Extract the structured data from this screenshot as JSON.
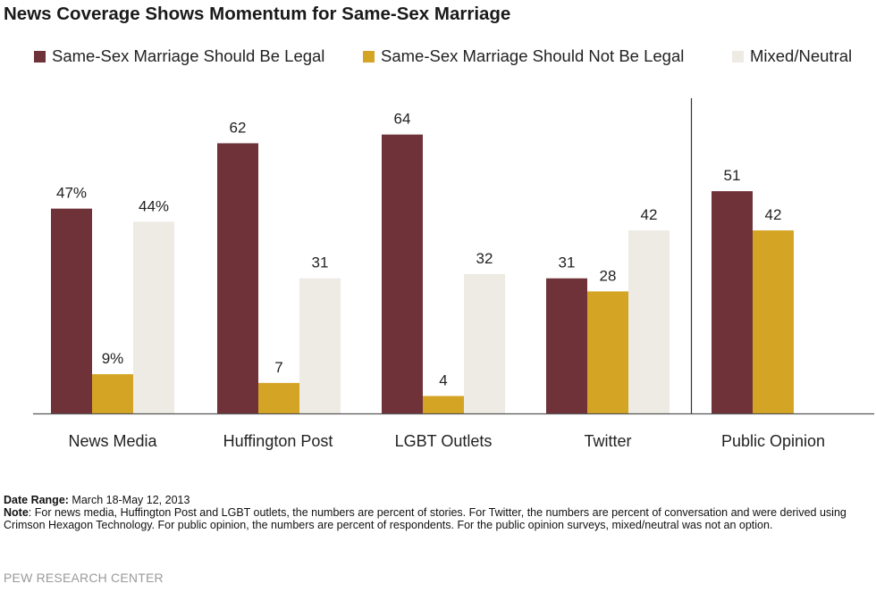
{
  "title": "News Coverage Shows Momentum for Same-Sex Marriage",
  "colors": {
    "legal": "#6f3239",
    "not_legal": "#d4a424",
    "mixed": "#eeebe5",
    "axis": "#555555"
  },
  "legend": [
    {
      "label": "Same-Sex Marriage Should Be Legal",
      "color_key": "legal"
    },
    {
      "label": "Same-Sex Marriage Should Not Be Legal",
      "color_key": "not_legal"
    },
    {
      "label": "Mixed/Neutral",
      "color_key": "mixed"
    }
  ],
  "chart_data": {
    "type": "bar",
    "categories": [
      "News Media",
      "Huffington Post",
      "LGBT Outlets",
      "Twitter",
      "Public Opinion"
    ],
    "series": [
      {
        "name": "Same-Sex Marriage Should Be Legal",
        "values": [
          47,
          62,
          64,
          31,
          51
        ],
        "labels": [
          "47%",
          "62",
          "64",
          "31",
          "51"
        ]
      },
      {
        "name": "Same-Sex Marriage Should Not Be Legal",
        "values": [
          9,
          7,
          4,
          28,
          42
        ],
        "labels": [
          "9%",
          "7",
          "4",
          "28",
          "42"
        ]
      },
      {
        "name": "Mixed/Neutral",
        "values": [
          44,
          31,
          32,
          42,
          null
        ],
        "labels": [
          "44%",
          "31",
          "32",
          "42",
          ""
        ]
      }
    ],
    "ylim": [
      0,
      70
    ],
    "grid": false,
    "legend_position": "top"
  },
  "footer": {
    "date_range_label": "Date Range:",
    "date_range_value": " March 18-May 12, 2013",
    "note_label": "Note",
    "note_text": ": For news media, Huffington Post and LGBT outlets, the numbers are percent of stories. For Twitter, the numbers are percent of conversation and were derived using Crimson Hexagon Technology. For public opinion, the numbers are percent of respondents. For the public opinion surveys, mixed/neutral was not an option.",
    "source": "PEW RESEARCH CENTER"
  }
}
